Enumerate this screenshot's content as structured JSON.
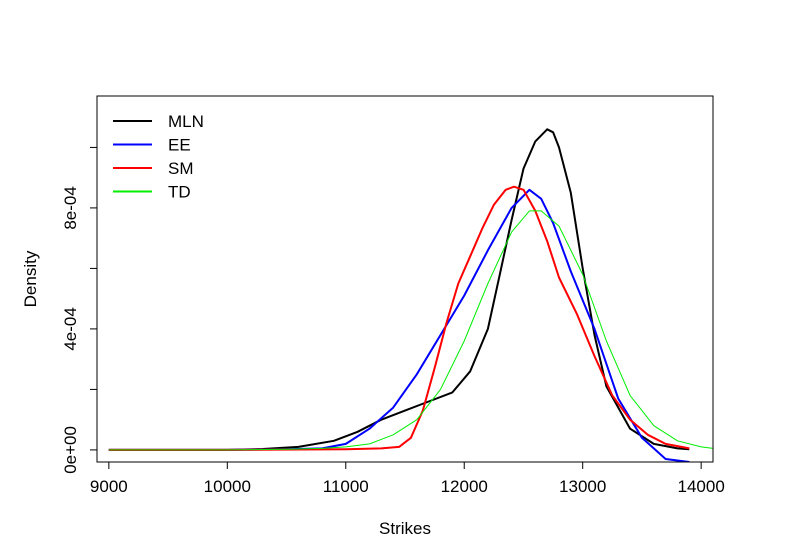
{
  "chart_data": {
    "type": "line",
    "title": "",
    "xlabel": "Strikes",
    "ylabel": "Density",
    "xlim": [
      8900,
      14100
    ],
    "ylim": [
      -4e-05,
      0.00117
    ],
    "x_ticks": [
      9000,
      10000,
      11000,
      12000,
      13000,
      14000
    ],
    "x_tick_labels": [
      "9000",
      "10000",
      "11000",
      "12000",
      "13000",
      "14000"
    ],
    "y_ticks": [
      0,
      0.0004,
      0.0008
    ],
    "y_tick_labels": [
      "0e+00",
      "4e-04",
      "8e-04"
    ],
    "y_minor_ticks": [
      0.0002,
      0.0006,
      0.001
    ],
    "grid": false,
    "legend_position": "top-left",
    "series": [
      {
        "name": "MLN",
        "color": "#000000",
        "x": [
          9000,
          10000,
          10300,
          10600,
          10900,
          11100,
          11300,
          11500,
          11700,
          11900,
          12050,
          12200,
          12300,
          12400,
          12500,
          12600,
          12700,
          12750,
          12800,
          12900,
          13000,
          13100,
          13200,
          13400,
          13600,
          13800,
          13900
        ],
        "y": [
          0,
          0,
          3e-06,
          1e-05,
          3e-05,
          6e-05,
          0.0001,
          0.00013,
          0.00016,
          0.00019,
          0.00026,
          0.0004,
          0.00058,
          0.00076,
          0.00093,
          0.00102,
          0.00106,
          0.00105,
          0.001,
          0.00085,
          0.0006,
          0.00038,
          0.00021,
          7e-05,
          2e-05,
          5e-06,
          2e-06
        ]
      },
      {
        "name": "EE",
        "color": "#0000ff",
        "x": [
          9000,
          10000,
          10500,
          10800,
          11000,
          11200,
          11400,
          11600,
          11800,
          12000,
          12200,
          12400,
          12550,
          12650,
          12750,
          12900,
          13100,
          13300,
          13500,
          13600,
          13700,
          13800,
          13900
        ],
        "y": [
          0,
          0,
          2e-06,
          5e-06,
          2e-05,
          7e-05,
          0.00014,
          0.00025,
          0.00038,
          0.00051,
          0.00066,
          0.0008,
          0.00086,
          0.00083,
          0.00075,
          0.00059,
          0.0004,
          0.00017,
          4e-05,
          5e-06,
          -3e-05,
          -3.5e-05,
          -4e-05
        ]
      },
      {
        "name": "SM",
        "color": "#ff0000",
        "x": [
          9000,
          10000,
          11000,
          11300,
          11450,
          11550,
          11650,
          11750,
          11850,
          11950,
          12050,
          12150,
          12250,
          12350,
          12420,
          12500,
          12600,
          12700,
          12800,
          12950,
          13100,
          13250,
          13400,
          13550,
          13700,
          13900
        ],
        "y": [
          0,
          0,
          2e-06,
          5e-06,
          1e-05,
          4e-05,
          0.00013,
          0.00027,
          0.00042,
          0.00055,
          0.00064,
          0.00073,
          0.00081,
          0.00086,
          0.00087,
          0.00086,
          0.00079,
          0.00069,
          0.00057,
          0.00045,
          0.00031,
          0.00018,
          0.0001,
          5e-05,
          2e-05,
          5e-06
        ]
      },
      {
        "name": "TD",
        "color": "#00ee00",
        "x": [
          9000,
          10000,
          10500,
          10800,
          11000,
          11200,
          11400,
          11600,
          11800,
          12000,
          12200,
          12400,
          12550,
          12650,
          12800,
          13000,
          13200,
          13400,
          13600,
          13800,
          14000,
          14100
        ],
        "y": [
          0,
          0,
          2e-06,
          5e-06,
          1e-05,
          2e-05,
          5e-05,
          0.0001,
          0.0002,
          0.00036,
          0.00055,
          0.00072,
          0.00079,
          0.00079,
          0.00074,
          0.00058,
          0.00036,
          0.00018,
          8e-05,
          3e-05,
          1e-05,
          5e-06
        ]
      }
    ]
  }
}
